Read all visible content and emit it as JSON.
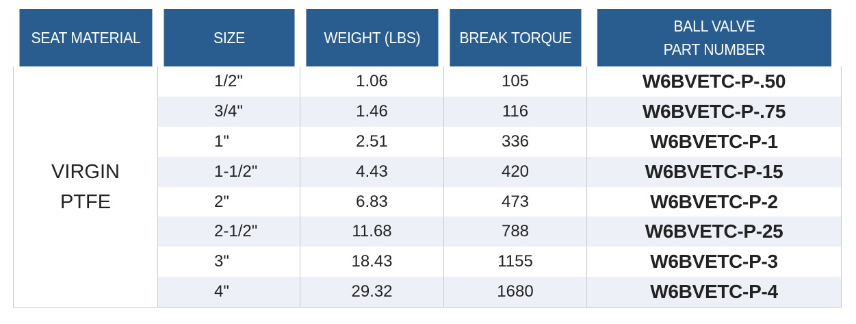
{
  "header": {
    "seat_material": "SEAT MATERIAL",
    "size": "SIZE",
    "weight": "WEIGHT (LBS)",
    "break_torque": "BREAK TORQUE",
    "part_number_line1": "BALL VALVE",
    "part_number_line2": "PART NUMBER"
  },
  "seat_material": {
    "line1": "VIRGIN",
    "line2": "PTFE"
  },
  "rows": [
    {
      "size": "1/2\"",
      "weight": "1.06",
      "torque": "105",
      "part": "W6BVETC-P-.50"
    },
    {
      "size": "3/4\"",
      "weight": "1.46",
      "torque": "116",
      "part": "W6BVETC-P-.75"
    },
    {
      "size": "1\"",
      "weight": "2.51",
      "torque": "336",
      "part": "W6BVETC-P-1"
    },
    {
      "size": "1-1/2\"",
      "weight": "4.43",
      "torque": "420",
      "part": "W6BVETC-P-15"
    },
    {
      "size": "2\"",
      "weight": "6.83",
      "torque": "473",
      "part": "W6BVETC-P-2"
    },
    {
      "size": "2-1/2\"",
      "weight": "11.68",
      "torque": "788",
      "part": "W6BVETC-P-25"
    },
    {
      "size": "3\"",
      "weight": "18.43",
      "torque": "1155",
      "part": "W6BVETC-P-3"
    },
    {
      "size": "4\"",
      "weight": "29.32",
      "torque": "1680",
      "part": "W6BVETC-P-4"
    }
  ],
  "colors": {
    "header_bg": "#2a5d8f",
    "header_text": "#ffffff",
    "row_shade": "#edf1f7",
    "grid_line": "#c8ccd2"
  }
}
